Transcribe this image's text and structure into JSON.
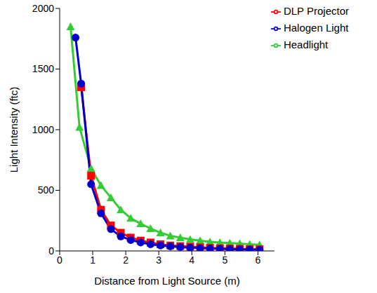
{
  "chart_data": {
    "type": "line",
    "x_label": "Distance from Light Source (m)",
    "y_label": "Light Intensity (ftc)",
    "xlim": [
      0,
      6.5
    ],
    "xticks": [
      0,
      1,
      2,
      3,
      4,
      5,
      6
    ],
    "ylim": [
      0,
      2000
    ],
    "yticks": [
      0,
      500,
      1000,
      1500,
      2000
    ],
    "grid": false,
    "legend": "upper right",
    "series": [
      {
        "name": "Headlight",
        "color": "#33cc33",
        "marker": "triangle",
        "x": [
          0.33,
          0.6,
          0.95,
          1.25,
          1.55,
          1.85,
          2.15,
          2.45,
          2.75,
          3.05,
          3.35,
          3.65,
          3.95,
          4.25,
          4.55,
          4.85,
          5.15,
          5.45,
          5.75,
          6.05
        ],
        "values": [
          1850,
          1020,
          680,
          540,
          440,
          340,
          270,
          225,
          185,
          150,
          125,
          110,
          95,
          85,
          75,
          70,
          65,
          60,
          55,
          50
        ]
      },
      {
        "name": "DLP Projector",
        "color": "#ff0000",
        "marker": "square",
        "x": [
          0.65,
          0.95,
          1.25,
          1.55,
          1.85,
          2.15,
          2.45,
          2.75,
          3.05,
          3.35,
          3.65,
          3.95,
          4.25,
          4.55,
          4.85,
          5.15,
          5.45,
          5.75,
          6.05
        ],
        "values": [
          1350,
          620,
          340,
          210,
          150,
          110,
          85,
          70,
          55,
          45,
          40,
          35,
          30,
          25,
          22,
          20,
          18,
          15,
          14
        ]
      },
      {
        "name": "Halogen Light",
        "color": "#0000cc",
        "marker": "circle",
        "x": [
          0.48,
          0.65,
          0.95,
          1.25,
          1.55,
          1.85,
          2.15,
          2.45,
          2.75,
          3.05,
          3.35,
          3.65,
          3.95,
          4.25,
          4.55,
          4.85,
          5.15,
          5.45,
          5.75,
          6.05
        ],
        "values": [
          1760,
          1380,
          550,
          310,
          180,
          120,
          90,
          70,
          55,
          45,
          38,
          32,
          27,
          23,
          20,
          18,
          15,
          13,
          12,
          10
        ]
      }
    ]
  }
}
